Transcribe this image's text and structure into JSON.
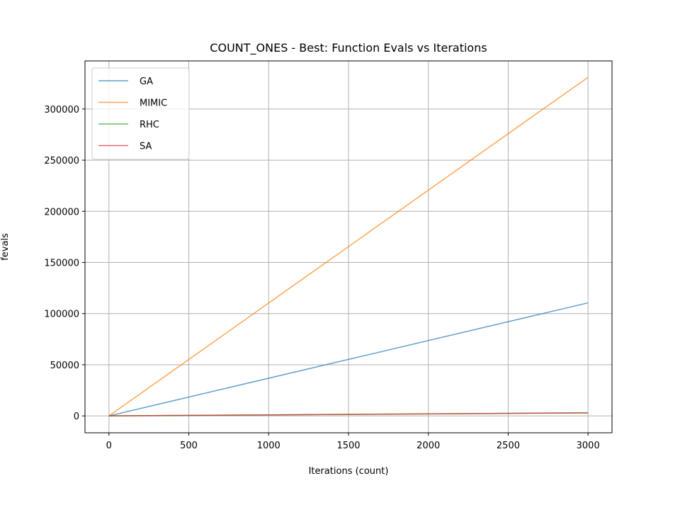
{
  "chart_data": {
    "type": "line",
    "title": "COUNT_ONES - Best: Function Evals vs Iterations",
    "xlabel": "Iterations (count)",
    "ylabel": "fevals",
    "xlim": [
      -150,
      3150
    ],
    "ylim": [
      -16500,
      347000
    ],
    "xticks": [
      0,
      500,
      1000,
      1500,
      2000,
      2500,
      3000
    ],
    "yticks": [
      0,
      50000,
      100000,
      150000,
      200000,
      250000,
      300000
    ],
    "grid": true,
    "legend_position": "top-left",
    "series": [
      {
        "name": "GA",
        "color": "#1f77b4",
        "x": [
          0,
          3000
        ],
        "y": [
          0,
          110500
        ]
      },
      {
        "name": "MIMIC",
        "color": "#ff7f0e",
        "x": [
          0,
          3000
        ],
        "y": [
          0,
          331000
        ]
      },
      {
        "name": "RHC",
        "color": "#2ca02c",
        "x": [
          0,
          3000
        ],
        "y": [
          0,
          3000
        ]
      },
      {
        "name": "SA",
        "color": "#d62728",
        "x": [
          0,
          3000
        ],
        "y": [
          0,
          3000
        ]
      }
    ]
  }
}
